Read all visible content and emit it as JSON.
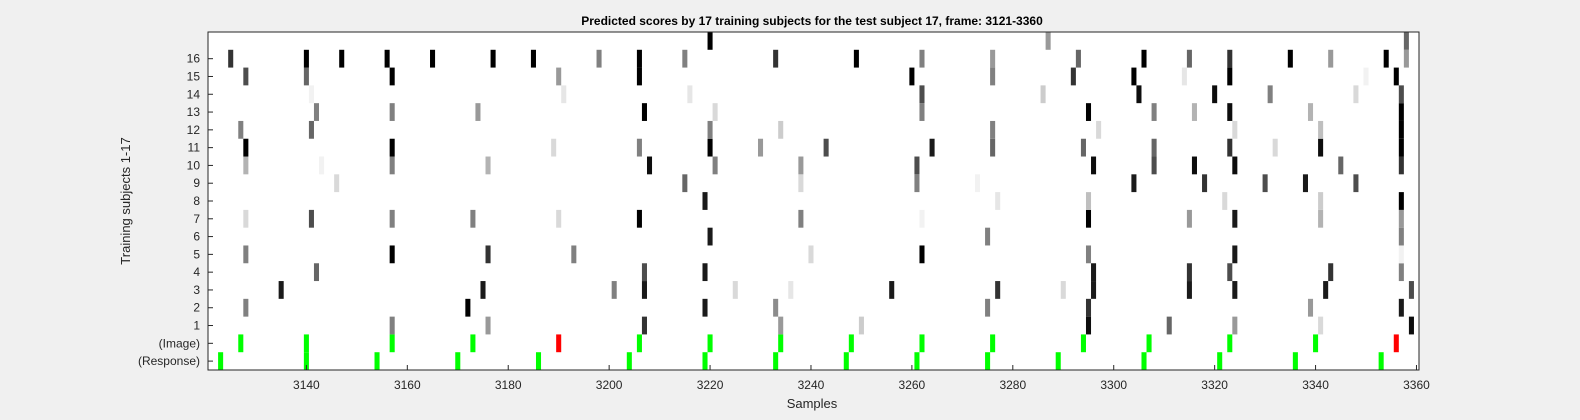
{
  "chart_data": {
    "type": "heatmap",
    "title": "Predicted scores by 17 training subjects for the test subject 17, frame: 3121-3360",
    "xlabel": "Samples",
    "ylabel": "Training subjects 1-17",
    "xlim": [
      3121,
      3360
    ],
    "x_ticks": [
      3140,
      3160,
      3180,
      3200,
      3220,
      3240,
      3260,
      3280,
      3300,
      3320,
      3340,
      3360
    ],
    "rows": [
      "(Response)",
      "(Image)",
      "1",
      "2",
      "3",
      "4",
      "5",
      "6",
      "7",
      "8",
      "9",
      "10",
      "11",
      "12",
      "13",
      "14",
      "15",
      "16",
      "17"
    ],
    "y_tick_labels": [
      "(Response)",
      "(Image)",
      "1",
      "2",
      "3",
      "4",
      "5",
      "6",
      "7",
      "8",
      "9",
      "10",
      "11",
      "12",
      "13",
      "14",
      "15",
      "16"
    ],
    "colors": {
      "background": "#ffffff",
      "correct": "#00ff00",
      "error": "#ff0000"
    },
    "cells": {
      "(Response)": [
        [
          3123,
          "green"
        ],
        [
          3140,
          "green"
        ],
        [
          3154,
          "green"
        ],
        [
          3170,
          "green"
        ],
        [
          3186,
          "green"
        ],
        [
          3204,
          "green"
        ],
        [
          3219,
          "green"
        ],
        [
          3233,
          "green"
        ],
        [
          3247,
          "green"
        ],
        [
          3261,
          "green"
        ],
        [
          3275,
          "green"
        ],
        [
          3289,
          "green"
        ],
        [
          3306,
          "green"
        ],
        [
          3321,
          "green"
        ],
        [
          3336,
          "green"
        ],
        [
          3353,
          "green"
        ]
      ],
      "(Image)": [
        [
          3127,
          "green"
        ],
        [
          3140,
          "green"
        ],
        [
          3157,
          "green"
        ],
        [
          3173,
          "green"
        ],
        [
          3190,
          "red"
        ],
        [
          3206,
          "green"
        ],
        [
          3220,
          "green"
        ],
        [
          3234,
          "green"
        ],
        [
          3248,
          "green"
        ],
        [
          3262,
          "green"
        ],
        [
          3276,
          "green"
        ],
        [
          3294,
          "green"
        ],
        [
          3307,
          "green"
        ],
        [
          3323,
          "green"
        ],
        [
          3340,
          "green"
        ],
        [
          3356,
          "red"
        ]
      ],
      "1": [
        [
          3157,
          0.5
        ],
        [
          3176,
          0.6
        ],
        [
          3207,
          0.2
        ],
        [
          3234,
          0.6
        ],
        [
          3250,
          0.8
        ],
        [
          3295,
          0.05
        ],
        [
          3311,
          0.4
        ],
        [
          3324,
          0.6
        ],
        [
          3341,
          0.85
        ],
        [
          3359,
          0.05
        ]
      ],
      "2": [
        [
          3128,
          0.5
        ],
        [
          3172,
          0.0
        ],
        [
          3219,
          0.1
        ],
        [
          3233,
          0.55
        ],
        [
          3275,
          0.5
        ],
        [
          3295,
          0.2
        ],
        [
          3339,
          0.6
        ],
        [
          3357,
          0.1
        ]
      ],
      "3": [
        [
          3135,
          0.1
        ],
        [
          3175,
          0.1
        ],
        [
          3201,
          0.5
        ],
        [
          3207,
          0.1
        ],
        [
          3225,
          0.85
        ],
        [
          3236,
          0.9
        ],
        [
          3256,
          0.1
        ],
        [
          3277,
          0.2
        ],
        [
          3290,
          0.85
        ],
        [
          3296,
          0.1
        ],
        [
          3315,
          0.1
        ],
        [
          3324,
          0.1
        ],
        [
          3342,
          0.1
        ],
        [
          3359,
          0.3
        ]
      ],
      "4": [
        [
          3142,
          0.4
        ],
        [
          3207,
          0.3
        ],
        [
          3219,
          0.1
        ],
        [
          3296,
          0.1
        ],
        [
          3315,
          0.2
        ],
        [
          3323,
          0.3
        ],
        [
          3343,
          0.2
        ],
        [
          3357,
          0.5
        ]
      ],
      "5": [
        [
          3128,
          0.5
        ],
        [
          3157,
          0.0
        ],
        [
          3176,
          0.2
        ],
        [
          3193,
          0.5
        ],
        [
          3240,
          0.85
        ],
        [
          3262,
          0.0
        ],
        [
          3295,
          0.5
        ],
        [
          3324,
          0.1
        ],
        [
          3357,
          0.95
        ]
      ],
      "6": [
        [
          3220,
          0.1
        ],
        [
          3275,
          0.5
        ],
        [
          3357,
          0.5
        ]
      ],
      "7": [
        [
          3128,
          0.85
        ],
        [
          3141,
          0.3
        ],
        [
          3157,
          0.5
        ],
        [
          3173,
          0.5
        ],
        [
          3190,
          0.85
        ],
        [
          3206,
          0.0
        ],
        [
          3238,
          0.5
        ],
        [
          3262,
          0.95
        ],
        [
          3295,
          0.0
        ],
        [
          3315,
          0.6
        ],
        [
          3324,
          0.1
        ],
        [
          3341,
          0.7
        ],
        [
          3357,
          0.6
        ]
      ],
      "8": [
        [
          3219,
          0.1
        ],
        [
          3277,
          0.9
        ],
        [
          3295,
          0.75
        ],
        [
          3322,
          0.85
        ],
        [
          3341,
          0.8
        ],
        [
          3357,
          0.0
        ]
      ],
      "9": [
        [
          3146,
          0.85
        ],
        [
          3215,
          0.4
        ],
        [
          3238,
          0.85
        ],
        [
          3261,
          0.5
        ],
        [
          3273,
          0.95
        ],
        [
          3304,
          0.1
        ],
        [
          3318,
          0.2
        ],
        [
          3330,
          0.3
        ],
        [
          3338,
          0.1
        ],
        [
          3348,
          0.3
        ]
      ],
      "10": [
        [
          3128,
          0.7
        ],
        [
          3143,
          0.95
        ],
        [
          3157,
          0.5
        ],
        [
          3176,
          0.7
        ],
        [
          3208,
          0.05
        ],
        [
          3221,
          0.5
        ],
        [
          3238,
          0.6
        ],
        [
          3261,
          0.3
        ],
        [
          3296,
          0.05
        ],
        [
          3308,
          0.3
        ],
        [
          3316,
          0.05
        ],
        [
          3324,
          0.05
        ],
        [
          3345,
          0.4
        ],
        [
          3357,
          0.2
        ]
      ],
      "11": [
        [
          3128,
          0.0
        ],
        [
          3157,
          0.0
        ],
        [
          3189,
          0.85
        ],
        [
          3206,
          0.5
        ],
        [
          3220,
          0.0
        ],
        [
          3230,
          0.6
        ],
        [
          3243,
          0.3
        ],
        [
          3264,
          0.1
        ],
        [
          3276,
          0.4
        ],
        [
          3294,
          0.4
        ],
        [
          3308,
          0.4
        ],
        [
          3323,
          0.2
        ],
        [
          3332,
          0.85
        ],
        [
          3341,
          0.05
        ],
        [
          3357,
          0.0
        ]
      ],
      "12": [
        [
          3127,
          0.5
        ],
        [
          3141,
          0.4
        ],
        [
          3220,
          0.5
        ],
        [
          3234,
          0.8
        ],
        [
          3276,
          0.5
        ],
        [
          3297,
          0.85
        ],
        [
          3324,
          0.85
        ],
        [
          3341,
          0.75
        ],
        [
          3357,
          0.0
        ]
      ],
      "13": [
        [
          3142,
          0.5
        ],
        [
          3157,
          0.5
        ],
        [
          3174,
          0.6
        ],
        [
          3207,
          0.0
        ],
        [
          3221,
          0.85
        ],
        [
          3262,
          0.5
        ],
        [
          3295,
          0.0
        ],
        [
          3308,
          0.5
        ],
        [
          3316,
          0.7
        ],
        [
          3323,
          0.05
        ],
        [
          3339,
          0.7
        ],
        [
          3357,
          0.0
        ]
      ],
      "14": [
        [
          3141,
          0.95
        ],
        [
          3191,
          0.9
        ],
        [
          3216,
          0.9
        ],
        [
          3262,
          0.3
        ],
        [
          3286,
          0.8
        ],
        [
          3305,
          0.05
        ],
        [
          3320,
          0.05
        ],
        [
          3331,
          0.5
        ],
        [
          3348,
          0.85
        ],
        [
          3357,
          0.3
        ]
      ],
      "15": [
        [
          3128,
          0.3
        ],
        [
          3140,
          0.4
        ],
        [
          3157,
          0.0
        ],
        [
          3190,
          0.6
        ],
        [
          3206,
          0.0
        ],
        [
          3260,
          0.0
        ],
        [
          3276,
          0.5
        ],
        [
          3292,
          0.2
        ],
        [
          3304,
          0.0
        ],
        [
          3314,
          0.9
        ],
        [
          3323,
          0.0
        ],
        [
          3350,
          0.95
        ],
        [
          3356,
          0.0
        ]
      ],
      "16": [
        [
          3125,
          0.2
        ],
        [
          3140,
          0.0
        ],
        [
          3147,
          0.0
        ],
        [
          3156,
          0.0
        ],
        [
          3165,
          0.0
        ],
        [
          3177,
          0.0
        ],
        [
          3185,
          0.0
        ],
        [
          3198,
          0.5
        ],
        [
          3206,
          0.0
        ],
        [
          3215,
          0.5
        ],
        [
          3233,
          0.2
        ],
        [
          3249,
          0.0
        ],
        [
          3262,
          0.5
        ],
        [
          3276,
          0.6
        ],
        [
          3293,
          0.4
        ],
        [
          3306,
          0.0
        ],
        [
          3315,
          0.4
        ],
        [
          3323,
          0.2
        ],
        [
          3335,
          0.0
        ],
        [
          3343,
          0.6
        ],
        [
          3354,
          0.0
        ],
        [
          3358,
          0.6
        ]
      ],
      "17": [
        [
          3220,
          0.0
        ],
        [
          3287,
          0.6
        ],
        [
          3358,
          0.4
        ]
      ]
    }
  }
}
